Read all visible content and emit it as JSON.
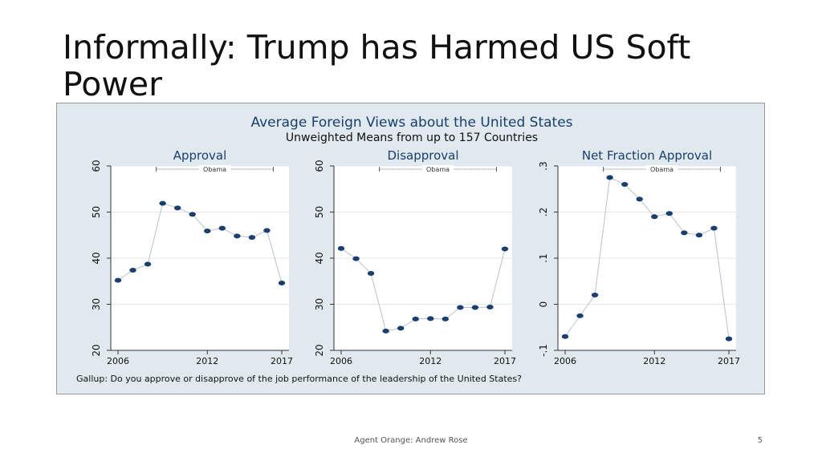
{
  "slide": {
    "title": "Informally: Trump has Harmed US Soft Power",
    "footer_text": "Agent Orange: Andrew Rose",
    "page_number": "5"
  },
  "colors": {
    "background": "#dfe9ee",
    "plot_background": "#ffffff",
    "title_color": "#1a3e6e",
    "marker_color": "#1a3e6e",
    "line_color": "#b9c3cb",
    "grid_color": "#e3e8ec"
  },
  "chart_data": [
    {
      "type": "scatter",
      "figure_title": "Average Foreign Views about the United States",
      "figure_subtitle": "Unweighted Means from up to 157 Countries",
      "figure_note": "Gallup: Do you approve or disapprove of the job performance of the leadership of the United States?",
      "title": "Approval",
      "annotation": "Obama",
      "annotation_span": [
        2009,
        2016
      ],
      "x": [
        2006,
        2007,
        2008,
        2009,
        2010,
        2011,
        2012,
        2013,
        2014,
        2015,
        2016,
        2017
      ],
      "y": [
        35.2,
        37.4,
        38.7,
        51.9,
        50.9,
        49.5,
        45.9,
        46.5,
        44.8,
        44.5,
        46.0,
        34.6
      ],
      "xticks": [
        "2006",
        "2012",
        "2017"
      ],
      "yticks": [
        "20",
        "30",
        "40",
        "50",
        "60"
      ],
      "xlim": [
        2006,
        2017
      ],
      "ylim": [
        20,
        60
      ],
      "grid": true
    },
    {
      "type": "scatter",
      "title": "Disapproval",
      "annotation": "Obama",
      "annotation_span": [
        2009,
        2016
      ],
      "x": [
        2006,
        2007,
        2008,
        2009,
        2010,
        2011,
        2012,
        2013,
        2014,
        2015,
        2016,
        2017
      ],
      "y": [
        42.1,
        39.9,
        36.7,
        24.2,
        24.8,
        26.8,
        26.9,
        26.8,
        29.3,
        29.3,
        29.4,
        42.0
      ],
      "xticks": [
        "2006",
        "2012",
        "2017"
      ],
      "yticks": [
        "20",
        "30",
        "40",
        "50",
        "60"
      ],
      "xlim": [
        2006,
        2017
      ],
      "ylim": [
        20,
        60
      ],
      "grid": true
    },
    {
      "type": "scatter",
      "title": "Net Fraction Approval",
      "annotation": "Obama",
      "annotation_span": [
        2009,
        2016
      ],
      "x": [
        2006,
        2007,
        2008,
        2009,
        2010,
        2011,
        2012,
        2013,
        2014,
        2015,
        2016,
        2017
      ],
      "y": [
        -0.07,
        -0.025,
        0.02,
        0.275,
        0.26,
        0.228,
        0.19,
        0.197,
        0.155,
        0.15,
        0.165,
        -0.075
      ],
      "xticks": [
        "2006",
        "2012",
        "2017"
      ],
      "yticks": [
        "-.1",
        "0",
        ".1",
        ".2",
        ".3"
      ],
      "xlim": [
        2006,
        2017
      ],
      "ylim": [
        -0.1,
        0.3
      ],
      "grid": true
    }
  ]
}
